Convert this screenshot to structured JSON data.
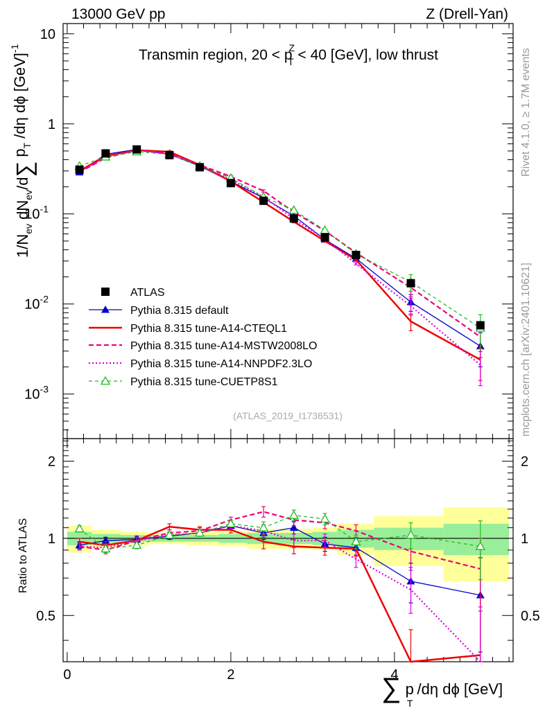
{
  "header": {
    "energy": "13000 GeV pp",
    "process": "Z (Drell-Yan)",
    "region_parts": [
      "Transmin region, 20 < p",
      "Z",
      "T",
      " < 40 [GeV], low thrust"
    ],
    "analysis_id": "(ATLAS_2019_I1736531)",
    "rivet_note": "Rivet 4.1.0, ≥ 1.7M events",
    "mcplots_note": "mcplots.cern.ch [arXiv:2401.10621]"
  },
  "axes": {
    "y_main_parts": [
      "1/N",
      "ev",
      " dN",
      "ev",
      "/d",
      "∑",
      " p",
      "T",
      " /dη dϕ  [GeV]",
      "-1"
    ],
    "y_ratio": "Ratio to ATLAS",
    "x_parts": [
      "∑",
      " p",
      "T",
      " /dη dϕ [GeV]"
    ],
    "x_ticks": [
      "0",
      "2",
      "4"
    ],
    "y_main_ticks": [
      {
        "base": "10",
        "exp": "-3",
        "v": 0.001
      },
      {
        "base": "10",
        "exp": "-2",
        "v": 0.01
      },
      {
        "base": "10",
        "exp": "-1",
        "v": 0.1
      },
      {
        "base": "1",
        "exp": "",
        "v": 1
      },
      {
        "base": "10",
        "exp": "",
        "v": 10
      }
    ],
    "y_ratio_ticks": [
      "0.5",
      "1",
      "2"
    ]
  },
  "colors": {
    "atlas": "#000000",
    "default": "#0000cc",
    "cteql1": "#ee0000",
    "mstw": "#ee0077",
    "nnpdf": "#dd00dd",
    "cuetp8s1": "#22bb22",
    "band_inner": "#99ee99",
    "band_outer": "#ffff99"
  },
  "chart_data": {
    "type": "line",
    "x_range": [
      -0.05,
      5.45
    ],
    "y_range_main": [
      0.00032,
      13
    ],
    "y_range_ratio": [
      0.33,
      2.45
    ],
    "bin_edges": [
      0.0,
      0.3,
      0.65,
      1.0,
      1.45,
      1.85,
      2.2,
      2.6,
      3.0,
      3.3,
      3.75,
      4.6,
      5.4
    ],
    "x": [
      0.15,
      0.47,
      0.85,
      1.25,
      1.62,
      2.0,
      2.4,
      2.77,
      3.15,
      3.53,
      4.2,
      5.05
    ],
    "data": {
      "name": "ATLAS",
      "values": [
        0.31,
        0.47,
        0.52,
        0.45,
        0.33,
        0.22,
        0.14,
        0.089,
        0.055,
        0.035,
        0.017,
        0.0058
      ],
      "band_inner": [
        0.06,
        0.04,
        0.03,
        0.03,
        0.03,
        0.04,
        0.05,
        0.05,
        0.06,
        0.08,
        0.1,
        0.14
      ],
      "band_outer": [
        0.12,
        0.08,
        0.06,
        0.05,
        0.06,
        0.07,
        0.09,
        0.09,
        0.1,
        0.14,
        0.22,
        0.32
      ]
    },
    "series": [
      {
        "name": "Pythia 8.315 default",
        "key": "default",
        "values": [
          0.29,
          0.46,
          0.52,
          0.46,
          0.34,
          0.23,
          0.15,
          0.095,
          0.052,
          0.032,
          0.0105,
          0.0034
        ]
      },
      {
        "name": "Pythia 8.315 tune-A14-CTEQL1",
        "key": "cteql1",
        "values": [
          0.3,
          0.44,
          0.51,
          0.49,
          0.35,
          0.23,
          0.135,
          0.082,
          0.05,
          0.031,
          0.0064,
          0.0024
        ]
      },
      {
        "name": "Pythia 8.315 tune-A14-MSTW2008LO",
        "key": "mstw",
        "values": [
          0.29,
          0.42,
          0.51,
          0.47,
          0.35,
          0.26,
          0.18,
          0.105,
          0.065,
          0.037,
          0.0152,
          0.0043
        ]
      },
      {
        "name": "Pythia 8.315 tune-A14-NNPDF2.3LO",
        "key": "nnpdf",
        "values": [
          0.29,
          0.43,
          0.51,
          0.46,
          0.34,
          0.24,
          0.155,
          0.088,
          0.053,
          0.028,
          0.0095,
          0.0021
        ]
      },
      {
        "name": "Pythia 8.315 tune-CUETP8S1",
        "key": "cuetp8s1",
        "values": [
          0.34,
          0.43,
          0.49,
          0.46,
          0.34,
          0.25,
          0.155,
          0.11,
          0.066,
          0.036,
          0.0175,
          0.0054
        ]
      }
    ],
    "ratio_series": [
      {
        "key": "default",
        "values": [
          0.94,
          0.98,
          0.99,
          1.02,
          1.05,
          1.12,
          1.05,
          1.1,
          0.95,
          0.92,
          0.68,
          0.6
        ]
      },
      {
        "key": "cteql1",
        "values": [
          0.97,
          0.94,
          0.98,
          1.11,
          1.08,
          1.08,
          0.97,
          0.93,
          0.92,
          0.91,
          0.32,
          0.35
        ]
      },
      {
        "key": "mstw",
        "values": [
          0.93,
          0.9,
          0.98,
          1.05,
          1.07,
          1.18,
          1.27,
          1.18,
          1.15,
          1.07,
          0.89,
          0.76
        ]
      },
      {
        "key": "nnpdf",
        "values": [
          0.93,
          0.92,
          0.98,
          1.03,
          1.05,
          1.12,
          1.07,
          0.98,
          0.98,
          0.83,
          0.63,
          0.3
        ]
      },
      {
        "key": "cuetp8s1",
        "values": [
          1.09,
          0.91,
          0.94,
          1.03,
          1.05,
          1.14,
          1.1,
          1.23,
          1.19,
          0.97,
          1.03,
          0.93
        ]
      }
    ]
  }
}
